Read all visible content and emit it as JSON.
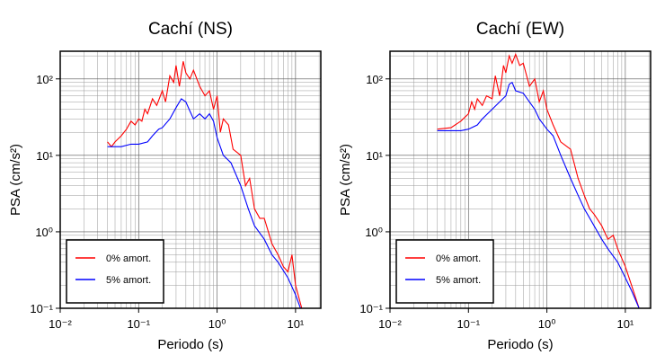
{
  "chart_data": [
    {
      "type": "line",
      "title": "Cachí (NS)",
      "xlabel": "Periodo (s)",
      "ylabel": "PSA (cm/s²)",
      "xscale": "log",
      "yscale": "log",
      "grid": true,
      "legend": "lower left",
      "xlim": [
        0.01,
        21
      ],
      "ylim": [
        0.1,
        230
      ],
      "xticks": [
        {
          "value": 0.01,
          "label": "10⁻²"
        },
        {
          "value": 0.1,
          "label": "10⁻¹"
        },
        {
          "value": 1,
          "label": "10⁰"
        },
        {
          "value": 10,
          "label": "10¹"
        }
      ],
      "yticks": [
        {
          "value": 0.1,
          "label": "10⁻¹"
        },
        {
          "value": 1,
          "label": "10⁰"
        },
        {
          "value": 10,
          "label": "10¹"
        },
        {
          "value": 100,
          "label": "10²"
        }
      ],
      "series": [
        {
          "name": "0% amort.",
          "color": "#ff0000",
          "x": [
            0.04,
            0.045,
            0.05,
            0.06,
            0.07,
            0.08,
            0.09,
            0.1,
            0.11,
            0.12,
            0.13,
            0.15,
            0.17,
            0.2,
            0.22,
            0.25,
            0.28,
            0.3,
            0.33,
            0.37,
            0.4,
            0.45,
            0.5,
            0.6,
            0.7,
            0.8,
            0.9,
            1.0,
            1.1,
            1.2,
            1.4,
            1.6,
            2,
            2.3,
            2.6,
            3,
            3.5,
            4,
            5,
            6,
            7,
            8,
            9,
            10,
            12
          ],
          "values": [
            15,
            13,
            15,
            18,
            22,
            28,
            25,
            30,
            28,
            40,
            35,
            55,
            45,
            70,
            50,
            110,
            90,
            150,
            80,
            170,
            120,
            100,
            130,
            80,
            60,
            70,
            40,
            60,
            20,
            30,
            25,
            12,
            10,
            4,
            5,
            2,
            1.5,
            1.5,
            0.7,
            0.5,
            0.35,
            0.3,
            0.5,
            0.2,
            0.1
          ]
        },
        {
          "name": "5% amort.",
          "color": "#0000ff",
          "x": [
            0.04,
            0.06,
            0.08,
            0.1,
            0.13,
            0.15,
            0.18,
            0.2,
            0.25,
            0.3,
            0.35,
            0.4,
            0.45,
            0.5,
            0.6,
            0.7,
            0.8,
            0.9,
            1,
            1.2,
            1.5,
            2,
            2.5,
            3,
            4,
            5,
            6,
            8,
            10,
            12
          ],
          "values": [
            13,
            13,
            14,
            14,
            15,
            18,
            22,
            23,
            30,
            42,
            55,
            50,
            38,
            30,
            35,
            30,
            35,
            28,
            17,
            10,
            8,
            4,
            2,
            1.2,
            0.8,
            0.5,
            0.4,
            0.25,
            0.15,
            0.09
          ]
        }
      ]
    },
    {
      "type": "line",
      "title": "Cachí (EW)",
      "xlabel": "Periodo (s)",
      "ylabel": "PSA (cm/s²)",
      "xscale": "log",
      "yscale": "log",
      "grid": true,
      "legend": "lower left",
      "xlim": [
        0.01,
        21
      ],
      "ylim": [
        0.1,
        230
      ],
      "xticks": [
        {
          "value": 0.01,
          "label": "10⁻²"
        },
        {
          "value": 0.1,
          "label": "10⁻¹"
        },
        {
          "value": 1,
          "label": "10⁰"
        },
        {
          "value": 10,
          "label": "10¹"
        }
      ],
      "yticks": [
        {
          "value": 0.1,
          "label": "10⁻¹"
        },
        {
          "value": 1,
          "label": "10⁰"
        },
        {
          "value": 10,
          "label": "10¹"
        },
        {
          "value": 100,
          "label": "10²"
        }
      ],
      "series": [
        {
          "name": "0% amort.",
          "color": "#ff0000",
          "x": [
            0.04,
            0.06,
            0.08,
            0.1,
            0.11,
            0.12,
            0.13,
            0.15,
            0.17,
            0.2,
            0.22,
            0.25,
            0.28,
            0.3,
            0.33,
            0.36,
            0.4,
            0.45,
            0.5,
            0.6,
            0.7,
            0.8,
            0.9,
            1,
            1.2,
            1.5,
            2,
            2.5,
            3,
            3.5,
            4,
            5,
            6,
            7,
            8,
            10,
            12,
            15
          ],
          "values": [
            22,
            23,
            28,
            35,
            50,
            40,
            55,
            45,
            60,
            55,
            110,
            60,
            150,
            120,
            200,
            160,
            210,
            150,
            160,
            80,
            100,
            50,
            70,
            40,
            25,
            15,
            12,
            5,
            3,
            2,
            1.7,
            1.2,
            0.8,
            0.9,
            0.6,
            0.35,
            0.2,
            0.1
          ]
        },
        {
          "name": "5% amort.",
          "color": "#0000ff",
          "x": [
            0.04,
            0.06,
            0.08,
            0.1,
            0.13,
            0.15,
            0.2,
            0.25,
            0.3,
            0.33,
            0.36,
            0.4,
            0.5,
            0.6,
            0.7,
            0.8,
            1,
            1.2,
            1.5,
            2,
            2.5,
            3,
            4,
            5,
            6,
            8,
            10,
            12,
            15
          ],
          "values": [
            21,
            21,
            21,
            22,
            25,
            30,
            40,
            50,
            60,
            85,
            90,
            70,
            65,
            50,
            40,
            30,
            22,
            18,
            10,
            5,
            3,
            2,
            1.2,
            0.8,
            0.6,
            0.4,
            0.25,
            0.17,
            0.1
          ]
        }
      ]
    }
  ]
}
